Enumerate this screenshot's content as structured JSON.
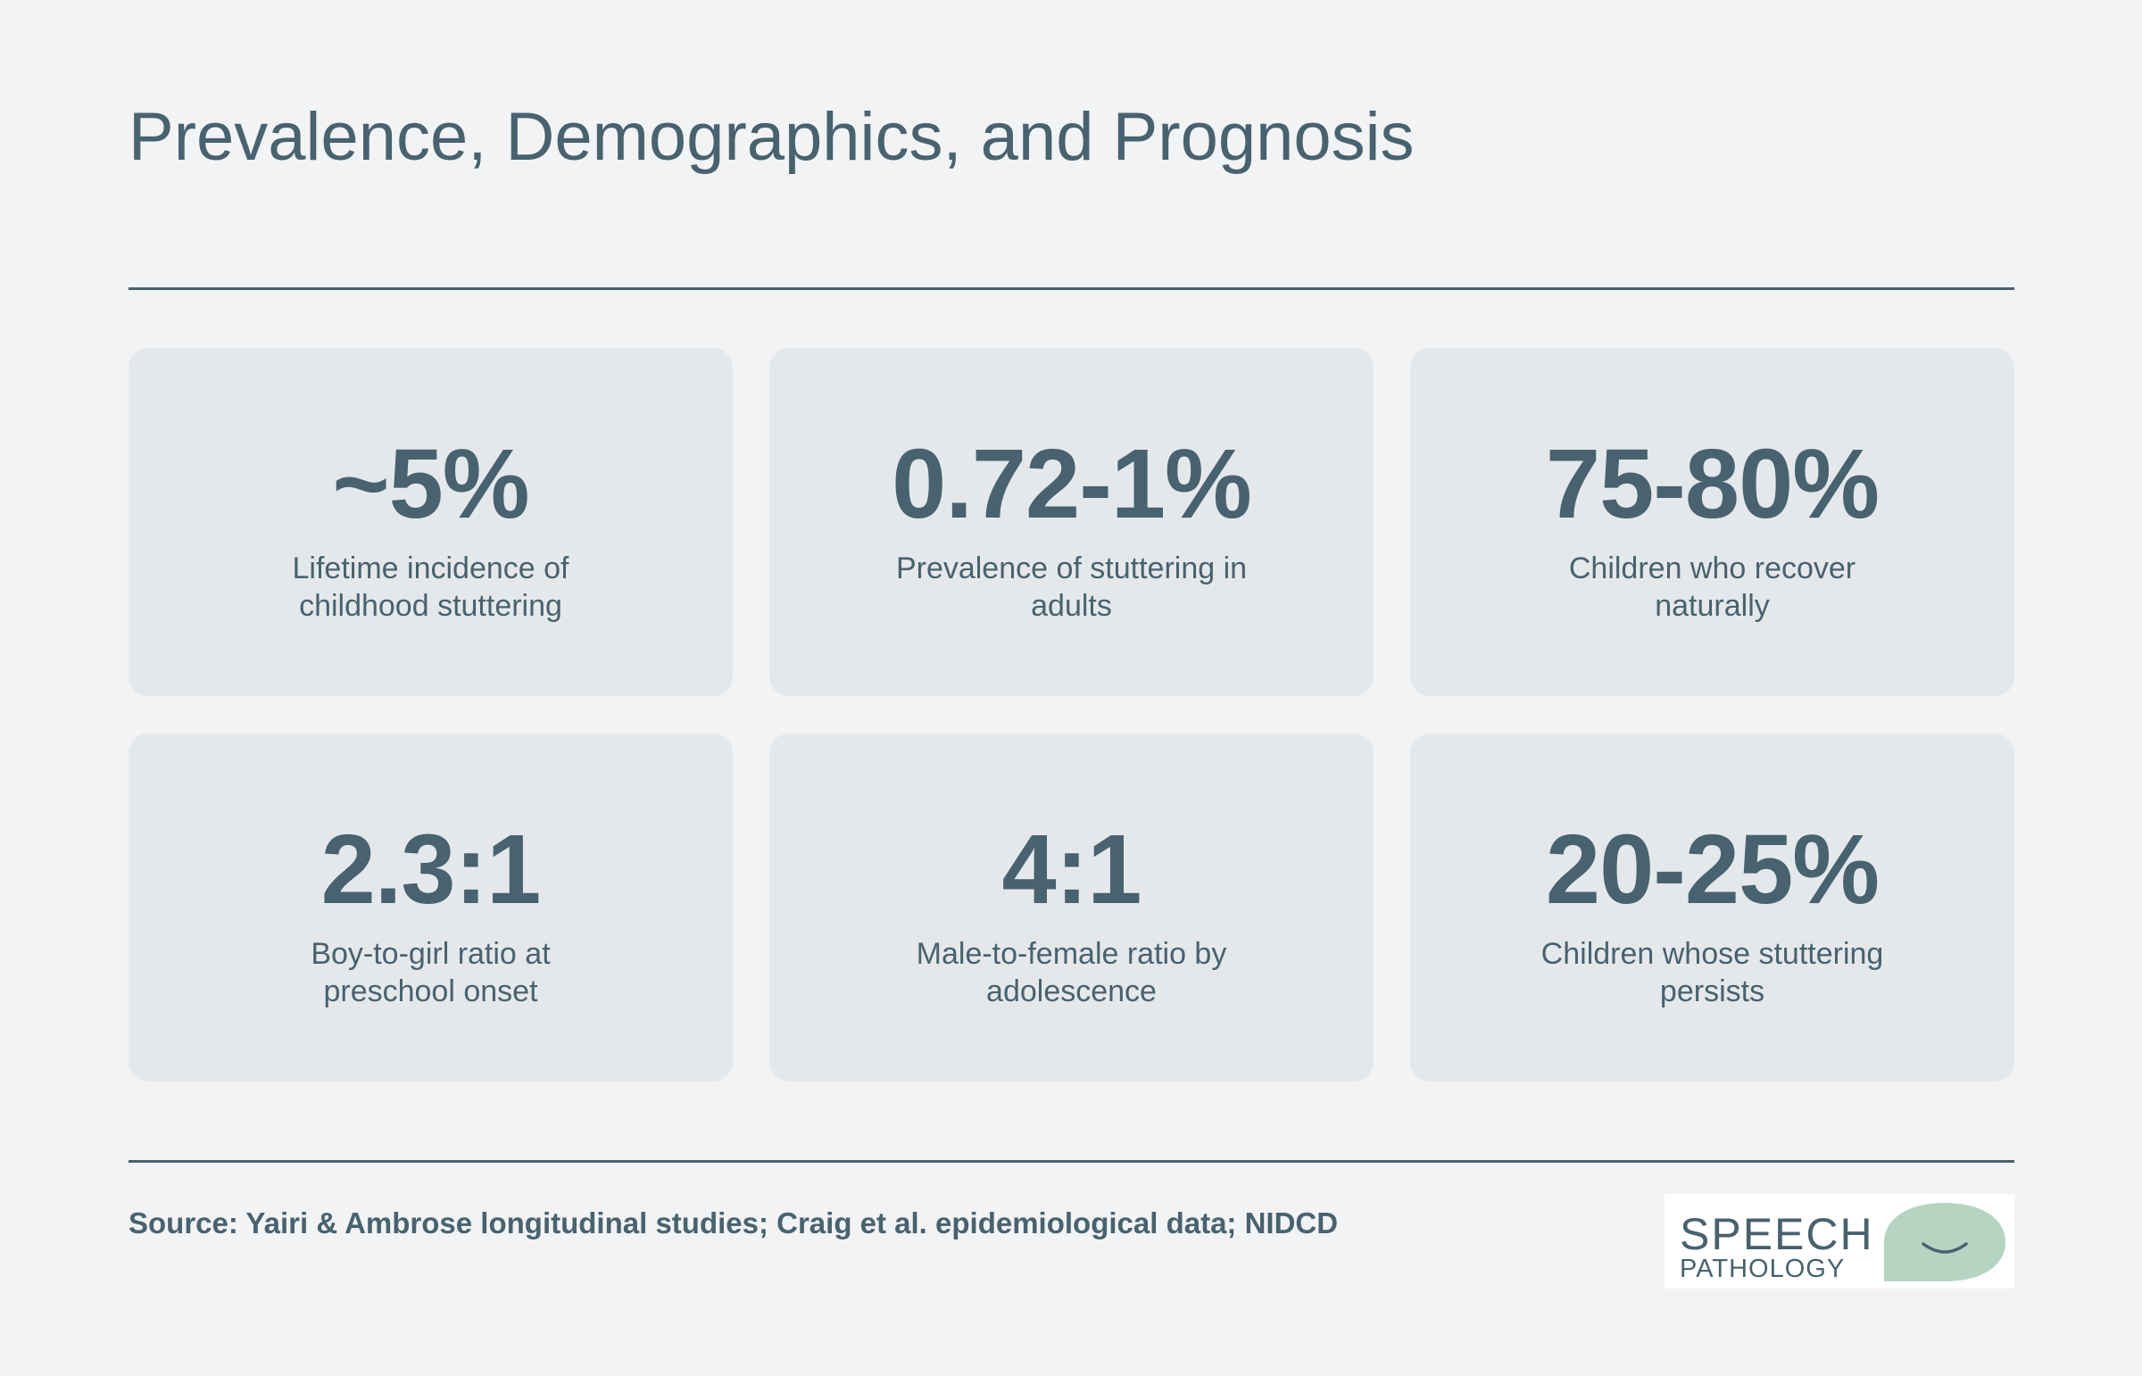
{
  "header": {
    "title": "Prevalence, Demographics, and Prognosis"
  },
  "stats": [
    {
      "value": "~5%",
      "label": "Lifetime incidence of childhood stuttering"
    },
    {
      "value": "0.72-1%",
      "label": "Prevalence of stuttering in adults"
    },
    {
      "value": "75-80%",
      "label": "Children who recover naturally"
    },
    {
      "value": "2.3:1",
      "label": "Boy-to-girl ratio at preschool onset"
    },
    {
      "value": "4:1",
      "label": "Male-to-female ratio by adolescence"
    },
    {
      "value": "20-25%",
      "label": "Children whose stuttering persists"
    }
  ],
  "footer": {
    "source": "Source: Yairi & Ambrose longitudinal studies; Craig et al. epidemiological data; NIDCD"
  },
  "logo": {
    "line1": "SPEECH",
    "line2": "PATHOLOGY",
    "bubble_color": "#b5d5c2",
    "icon": "smile-speech-bubble-icon"
  },
  "colors": {
    "background": "#f2f3f5",
    "card": "#e5e8eb",
    "text": "#48626f"
  }
}
